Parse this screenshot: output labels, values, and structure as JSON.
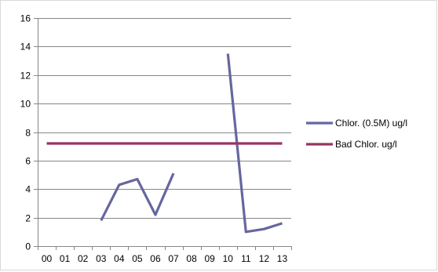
{
  "chart_data": {
    "type": "line",
    "title": "",
    "xlabel": "",
    "ylabel": "",
    "categories": [
      "00",
      "01",
      "02",
      "03",
      "04",
      "05",
      "06",
      "07",
      "08",
      "09",
      "10",
      "11",
      "12",
      "13"
    ],
    "ylim": [
      0,
      16
    ],
    "yticks": [
      0,
      2,
      4,
      6,
      8,
      10,
      12,
      14,
      16
    ],
    "grid": "horizontal",
    "legend_position": "right",
    "series": [
      {
        "name": "Chlor. (0.5M) ug/l",
        "color": "#6666a0",
        "values": [
          null,
          null,
          null,
          1.8,
          4.3,
          4.7,
          2.2,
          5.1,
          null,
          null,
          13.5,
          1.0,
          1.2,
          1.6
        ]
      },
      {
        "name": "Bad Chlor. ug/l",
        "color": "#993366",
        "values": [
          7.2,
          7.2,
          7.2,
          7.2,
          7.2,
          7.2,
          7.2,
          7.2,
          7.2,
          7.2,
          7.2,
          7.2,
          7.2,
          7.2
        ]
      }
    ]
  }
}
